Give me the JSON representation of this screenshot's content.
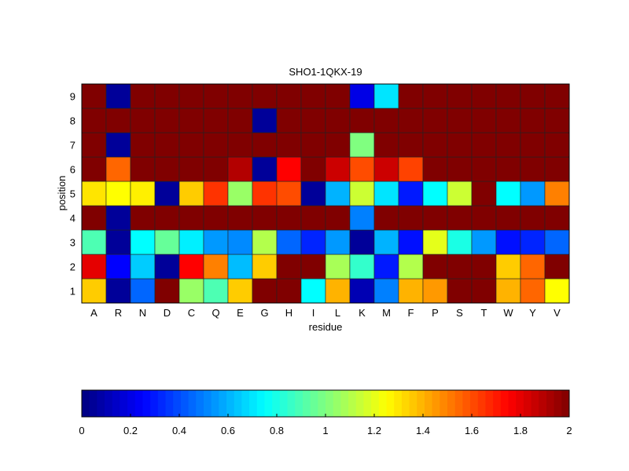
{
  "chart_data": {
    "type": "heatmap",
    "title": "SHO1-1QKX-19",
    "xlabel": "residue",
    "ylabel": "position",
    "x_categories": [
      "A",
      "R",
      "N",
      "D",
      "C",
      "Q",
      "E",
      "G",
      "H",
      "I",
      "L",
      "K",
      "M",
      "F",
      "P",
      "S",
      "T",
      "W",
      "Y",
      "V"
    ],
    "y_categories": [
      "1",
      "2",
      "3",
      "4",
      "5",
      "6",
      "7",
      "8",
      "9"
    ],
    "colormap": "jet",
    "clim": [
      0,
      2
    ],
    "colorbar": {
      "placement": "bottom",
      "ticks": [
        "0",
        "0.2",
        "0.4",
        "0.6",
        "0.8",
        "1",
        "1.2",
        "1.4",
        "1.6",
        "1.8",
        "2"
      ]
    },
    "values": [
      [
        1.35,
        0.05,
        0.45,
        2,
        1.05,
        0.9,
        1.35,
        2,
        2,
        0.75,
        1.4,
        0.1,
        0.5,
        1.4,
        1.45,
        2,
        2,
        1.4,
        1.55,
        1.25
      ],
      [
        1.8,
        0.25,
        0.65,
        0.05,
        1.75,
        1.5,
        0.62,
        1.35,
        2,
        2,
        1.08,
        0.85,
        0.3,
        1.1,
        2,
        2,
        2,
        1.35,
        1.55,
        2
      ],
      [
        0.9,
        0.05,
        0.75,
        0.95,
        0.72,
        0.55,
        0.52,
        1.1,
        0.45,
        0.32,
        0.55,
        0.05,
        0.6,
        0.28,
        1.2,
        0.8,
        0.55,
        0.28,
        0.32,
        0.45
      ],
      [
        2,
        0.05,
        2,
        2,
        2,
        2,
        2,
        2,
        2,
        2,
        2,
        0.5,
        2,
        2,
        2,
        2,
        2,
        2,
        2,
        2
      ],
      [
        1.3,
        1.25,
        1.28,
        0.05,
        1.35,
        1.65,
        1.05,
        1.65,
        1.6,
        0.05,
        0.6,
        1.15,
        0.7,
        0.3,
        0.75,
        1.15,
        2,
        0.75,
        0.55,
        1.5
      ],
      [
        2,
        1.55,
        2,
        2,
        2,
        2,
        1.9,
        0.05,
        1.75,
        2,
        1.85,
        1.6,
        1.85,
        1.62,
        2,
        2,
        2,
        2,
        2,
        2
      ],
      [
        2,
        0.05,
        2,
        2,
        2,
        2,
        2,
        2,
        2,
        2,
        2,
        1.0,
        2,
        2,
        2,
        2,
        2,
        2,
        2,
        2
      ],
      [
        2,
        2,
        2,
        2,
        2,
        2,
        2,
        0.05,
        2,
        2,
        2,
        2,
        2,
        2,
        2,
        2,
        2,
        2,
        2,
        2
      ],
      [
        2,
        0.05,
        2,
        2,
        2,
        2,
        2,
        2,
        2,
        2,
        2,
        0.2,
        0.7,
        2,
        2,
        2,
        2,
        2,
        2,
        2
      ]
    ]
  }
}
